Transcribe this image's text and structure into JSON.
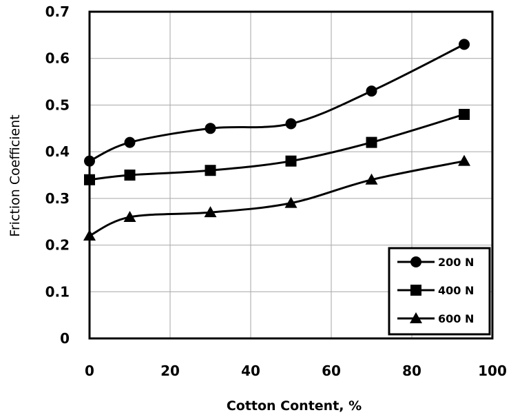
{
  "chart_data": {
    "type": "line",
    "xlabel": "Cotton Content, %",
    "ylabel": "Friction Coefficient",
    "xlim": [
      0,
      100
    ],
    "ylim": [
      0,
      0.7
    ],
    "x_ticks": [
      0,
      20,
      40,
      60,
      80,
      100
    ],
    "y_ticks": [
      0,
      0.1,
      0.2,
      0.3,
      0.4,
      0.5,
      0.6,
      0.7
    ],
    "x_tick_labels": [
      "0",
      "20",
      "40",
      "60",
      "80",
      "100"
    ],
    "y_tick_labels": [
      "0",
      "0.1",
      "0.2",
      "0.3",
      "0.4",
      "0.5",
      "0.6",
      "0.7"
    ],
    "grid": true,
    "legend_position": "bottom-right",
    "smooth": true,
    "series": [
      {
        "name": "200 N",
        "marker": "circle",
        "x": [
          0,
          10,
          30,
          50,
          70,
          93
        ],
        "y": [
          0.38,
          0.42,
          0.45,
          0.46,
          0.53,
          0.63
        ]
      },
      {
        "name": "400 N",
        "marker": "square",
        "x": [
          0,
          10,
          30,
          50,
          70,
          93
        ],
        "y": [
          0.34,
          0.35,
          0.36,
          0.38,
          0.42,
          0.48
        ]
      },
      {
        "name": "600 N",
        "marker": "triangle",
        "x": [
          0,
          10,
          30,
          50,
          70,
          93
        ],
        "y": [
          0.22,
          0.26,
          0.27,
          0.29,
          0.34,
          0.38
        ]
      }
    ],
    "colors": {
      "line": "#000000",
      "grid": "#a6a6a6",
      "background": "#ffffff"
    }
  }
}
